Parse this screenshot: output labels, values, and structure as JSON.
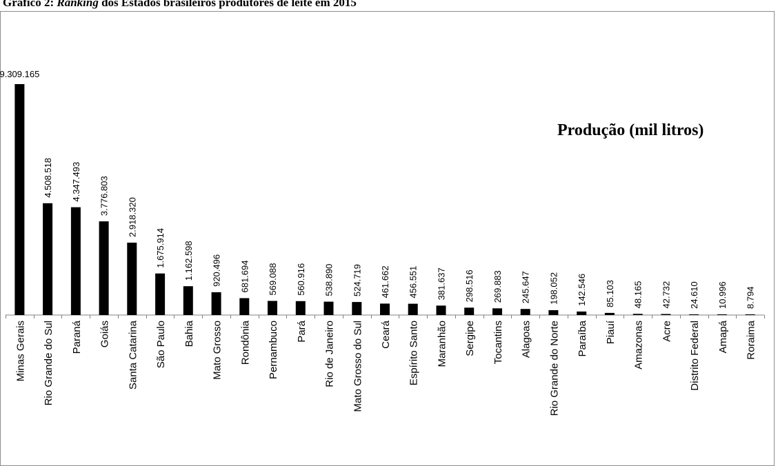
{
  "title": {
    "prefix": "Gráfico 2: ",
    "emphasis": "Ranking",
    "rest": " dos Estados brasileiros produtores de leite em 2015"
  },
  "chart_data": {
    "type": "bar",
    "legend_label": "Produção (mil litros)",
    "legend_position": "top-right",
    "grid": false,
    "ylim": [
      0,
      9309165
    ],
    "categories": [
      "Minas Gerais",
      "Rio Grande do Sul",
      "Paraná",
      "Goiás",
      "Santa Catarina",
      "São Paulo",
      "Bahia",
      "Mato Grosso",
      "Rondônia",
      "Pernambuco",
      "Pará",
      "Rio de Janeiro",
      "Mato Grosso do Sul",
      "Ceará",
      "Espírito Santo",
      "Maranhão",
      "Sergipe",
      "Tocantins",
      "Alagoas",
      "Rio Grande do Norte",
      "Paraíba",
      "Piauí",
      "Amazonas",
      "Acre",
      "Distrito Federal",
      "Amapá",
      "Roraima"
    ],
    "values": [
      9309165,
      4508518,
      4347493,
      3776803,
      2918320,
      1675914,
      1162598,
      920496,
      681694,
      569088,
      560916,
      538890,
      524719,
      461662,
      456551,
      381637,
      298516,
      269883,
      245647,
      198052,
      142546,
      85103,
      48165,
      42732,
      24610,
      10996,
      8794
    ],
    "value_labels": [
      "9.309.165",
      "4.508.518",
      "4.347.493",
      "3.776.803",
      "2.918.320",
      "1.675.914",
      "1.162.598",
      "920.496",
      "681.694",
      "569.088",
      "560.916",
      "538.890",
      "524.719",
      "461.662",
      "456.551",
      "381.637",
      "298.516",
      "269.883",
      "245.647",
      "198.052",
      "142.546",
      "85.103",
      "48.165",
      "42.732",
      "24.610",
      "10.996",
      "8.794"
    ],
    "colors": {
      "bar": "#000000",
      "axis": "#808080"
    }
  }
}
